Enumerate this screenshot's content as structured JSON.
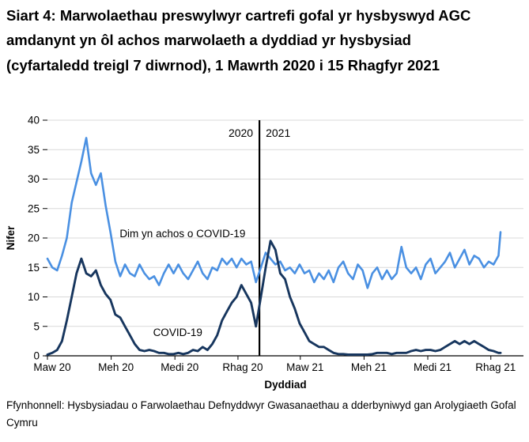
{
  "title": "Siart 4: Marwolaethau preswylwyr cartrefi gofal yr hysbyswyd AGC amdanynt yn ôl achos marwolaeth a dyddiad yr hysbysiad (cyfartaledd treigl 7 diwrnod), 1 Mawrth 2020 i 15 Rhagfyr 2021",
  "source_note": "Ffynhonnell: Hysbysiadau o Farwolaethau Defnyddwyr Gwasanaethau a dderbyniwyd gan Arolygiaeth Gofal Cymru",
  "colors": {
    "non_covid_line": "#4A90E2",
    "covid_line": "#17365E",
    "gridline": "#D9D9D9",
    "axis": "#000000",
    "year_divider": "#000000",
    "text": "#000000"
  },
  "chart_data": {
    "type": "line",
    "title": "Siart 4: Marwolaethau preswylwyr cartrefi gofal yr hysbyswyd AGC amdanynt yn ôl achos marwolaeth a dyddiad yr hysbysiad (cyfartaledd treigl 7 diwrnod), 1 Mawrth 2020 i 15 Rhagfyr 2021",
    "xlabel": "Dyddiad",
    "ylabel": "Nifer",
    "ylim": [
      0,
      40
    ],
    "y_ticks": [
      0,
      5,
      10,
      15,
      20,
      25,
      30,
      35,
      40
    ],
    "grid": "horizontal",
    "legend": "inline-annotations",
    "period": {
      "start": "1 Mawrth 2020",
      "end": "15 Rhagfyr 2021"
    },
    "x_axis_days_range": [
      0,
      654
    ],
    "x_ticks": [
      {
        "label": "Maw 20",
        "day": 0
      },
      {
        "label": "Meh 20",
        "day": 92
      },
      {
        "label": "Medi 20",
        "day": 184
      },
      {
        "label": "Rhag 20",
        "day": 275
      },
      {
        "label": "Maw 21",
        "day": 365
      },
      {
        "label": "Meh 21",
        "day": 457
      },
      {
        "label": "Medi 21",
        "day": 549
      },
      {
        "label": "Rhag 21",
        "day": 640
      }
    ],
    "year_divider": {
      "day": 306,
      "left_label": "2020",
      "right_label": "2021"
    },
    "days": [
      0,
      7,
      14,
      21,
      28,
      35,
      42,
      49,
      56,
      63,
      70,
      77,
      84,
      91,
      98,
      105,
      112,
      119,
      126,
      133,
      140,
      147,
      154,
      161,
      168,
      175,
      182,
      189,
      196,
      203,
      210,
      217,
      224,
      231,
      238,
      245,
      252,
      259,
      266,
      273,
      280,
      287,
      294,
      301,
      308,
      315,
      322,
      329,
      336,
      343,
      350,
      357,
      364,
      371,
      378,
      385,
      392,
      399,
      406,
      413,
      420,
      427,
      434,
      441,
      448,
      455,
      462,
      469,
      476,
      483,
      490,
      497,
      504,
      511,
      518,
      525,
      532,
      539,
      546,
      553,
      560,
      567,
      574,
      581,
      588,
      595,
      602,
      609,
      616,
      623,
      630,
      637,
      644,
      651,
      654
    ],
    "series": [
      {
        "name": "Dim yn achos o COVID-19",
        "color": "#4A90E2",
        "label_anchor": {
          "day": 195,
          "value": 20.7
        },
        "values": [
          16.5,
          15,
          14.5,
          17,
          20,
          26,
          29.5,
          33,
          37,
          31,
          29,
          31,
          25.5,
          21,
          16,
          13.5,
          15.5,
          14,
          13.5,
          15.5,
          14,
          13,
          13.5,
          12,
          14,
          15.5,
          14,
          15.5,
          14,
          13,
          14.5,
          16,
          14,
          13,
          15,
          14.5,
          16.5,
          15.5,
          16.5,
          15,
          16.5,
          15.5,
          16,
          12.5,
          15,
          17.5,
          16.5,
          15.5,
          16,
          14.5,
          15,
          14,
          15.5,
          14,
          14.5,
          12.5,
          14,
          13,
          14.5,
          12.5,
          15,
          16,
          14,
          13,
          15.5,
          14.5,
          11.5,
          14,
          15,
          13,
          14.5,
          13,
          14,
          18.5,
          15,
          14,
          15,
          13,
          15.5,
          16.5,
          14,
          15,
          16,
          17.5,
          15,
          16.5,
          18,
          15.5,
          17,
          16.5,
          15,
          16,
          15.5,
          17,
          21
        ]
      },
      {
        "name": "COVID-19",
        "color": "#17365E",
        "label_anchor": {
          "day": 188,
          "value": 3.9
        },
        "values": [
          0.2,
          0.5,
          1,
          2.5,
          6,
          10,
          14,
          16.5,
          14,
          13.5,
          14.5,
          12,
          10.5,
          9.5,
          7,
          6.5,
          5,
          3.5,
          2,
          1,
          0.8,
          1,
          0.8,
          0.5,
          0.5,
          0.3,
          0.3,
          0.5,
          0.3,
          0.5,
          1,
          0.8,
          1.5,
          1,
          2,
          3.5,
          6,
          7.5,
          9,
          10,
          12,
          10.5,
          9,
          5,
          10,
          15,
          19.5,
          18,
          14,
          13,
          10,
          8,
          5.5,
          4,
          2.5,
          2,
          1.5,
          1.5,
          1,
          0.5,
          0.3,
          0.3,
          0.2,
          0.2,
          0.2,
          0.2,
          0.2,
          0.3,
          0.5,
          0.5,
          0.5,
          0.3,
          0.5,
          0.5,
          0.5,
          0.8,
          1,
          0.8,
          1,
          1,
          0.8,
          1,
          1.5,
          2,
          2.5,
          2,
          2.5,
          2,
          2.5,
          2,
          1.5,
          1,
          0.8,
          0.5,
          0.5
        ]
      }
    ]
  }
}
